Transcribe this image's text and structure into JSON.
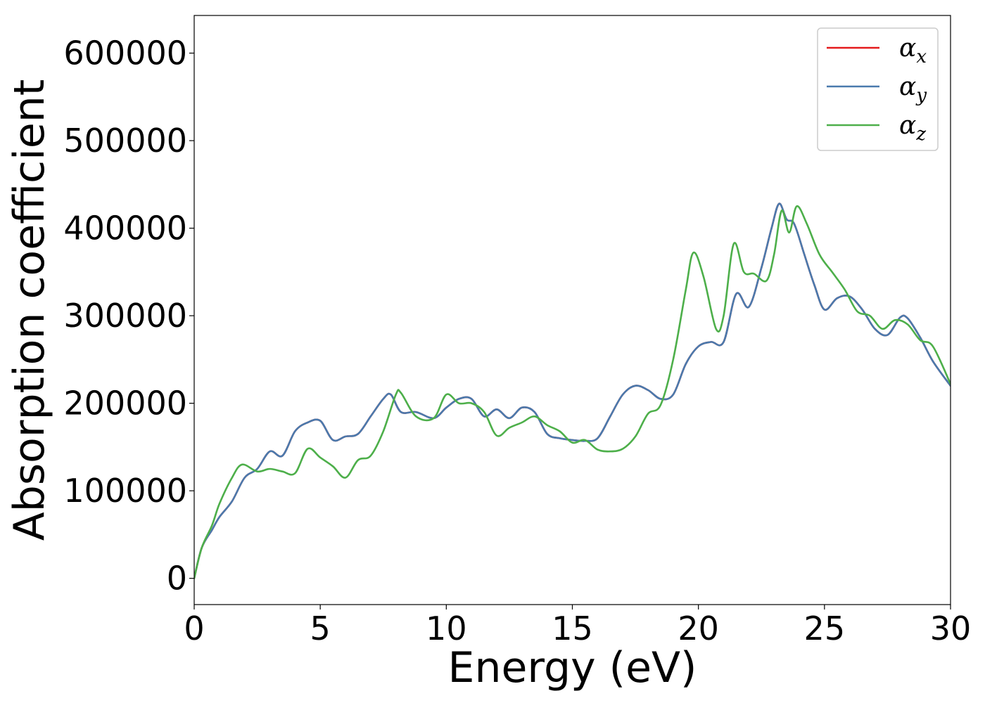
{
  "chart_data": {
    "type": "line",
    "title": "",
    "xlabel": "Energy (eV)",
    "ylabel": "Absorption coefficient",
    "xlim": [
      0,
      30
    ],
    "ylim": [
      -30000,
      643000
    ],
    "xticks": [
      0,
      5,
      10,
      15,
      20,
      25,
      30
    ],
    "xtick_labels": [
      "0",
      "5",
      "10",
      "15",
      "20",
      "25",
      "30"
    ],
    "yticks": [
      0,
      100000,
      200000,
      300000,
      400000,
      500000,
      600000
    ],
    "ytick_labels": [
      "0",
      "100000",
      "200000",
      "300000",
      "400000",
      "500000",
      "600000"
    ],
    "grid": false,
    "legend_position": "top-right",
    "colors": {
      "x": "#e41a1c",
      "y": "#4a7aad",
      "z": "#4daf4a"
    },
    "series": [
      {
        "key": "x",
        "name": "α",
        "sub": "x",
        "color": "#e41a1c",
        "x": [
          0,
          0.3,
          0.7,
          1.0,
          1.5,
          2.0,
          2.5,
          3.0,
          3.5,
          4.0,
          4.5,
          5.0,
          5.5,
          6.0,
          6.5,
          7.0,
          7.5,
          7.8,
          8.2,
          8.8,
          9.5,
          10.0,
          10.5,
          11.0,
          11.5,
          12.0,
          12.5,
          13.0,
          13.5,
          14.0,
          14.5,
          15.0,
          15.5,
          16.0,
          16.5,
          17.0,
          17.5,
          18.0,
          18.5,
          19.0,
          19.5,
          20.0,
          20.5,
          21.0,
          21.5,
          22.0,
          22.5,
          22.9,
          23.2,
          23.5,
          23.8,
          24.2,
          24.6,
          25.0,
          25.5,
          26.0,
          26.5,
          27.0,
          27.5,
          28.0,
          28.3,
          28.8,
          29.3,
          30.0
        ],
        "y": [
          0,
          35000,
          55000,
          70000,
          88000,
          115000,
          125000,
          145000,
          140000,
          168000,
          178000,
          180000,
          158000,
          162000,
          165000,
          185000,
          205000,
          210000,
          190000,
          190000,
          183000,
          195000,
          205000,
          205000,
          185000,
          193000,
          183000,
          195000,
          190000,
          165000,
          160000,
          158000,
          157000,
          160000,
          185000,
          210000,
          220000,
          215000,
          205000,
          210000,
          245000,
          265000,
          270000,
          270000,
          325000,
          310000,
          355000,
          400000,
          428000,
          410000,
          405000,
          370000,
          335000,
          307000,
          320000,
          322000,
          307000,
          285000,
          278000,
          298000,
          297000,
          275000,
          248000,
          220000
        ]
      },
      {
        "key": "y",
        "name": "α",
        "sub": "y",
        "color": "#4a7aad",
        "x": [
          0,
          0.3,
          0.7,
          1.0,
          1.5,
          2.0,
          2.5,
          3.0,
          3.5,
          4.0,
          4.5,
          5.0,
          5.5,
          6.0,
          6.5,
          7.0,
          7.5,
          7.8,
          8.2,
          8.8,
          9.5,
          10.0,
          10.5,
          11.0,
          11.5,
          12.0,
          12.5,
          13.0,
          13.5,
          14.0,
          14.5,
          15.0,
          15.5,
          16.0,
          16.5,
          17.0,
          17.5,
          18.0,
          18.5,
          19.0,
          19.5,
          20.0,
          20.5,
          21.0,
          21.5,
          22.0,
          22.5,
          22.9,
          23.2,
          23.5,
          23.8,
          24.2,
          24.6,
          25.0,
          25.5,
          26.0,
          26.5,
          27.0,
          27.5,
          28.0,
          28.3,
          28.8,
          29.3,
          30.0
        ],
        "y": [
          0,
          35000,
          55000,
          70000,
          88000,
          115000,
          125000,
          145000,
          140000,
          168000,
          178000,
          180000,
          158000,
          162000,
          165000,
          185000,
          205000,
          210000,
          190000,
          190000,
          183000,
          195000,
          205000,
          205000,
          185000,
          193000,
          183000,
          195000,
          190000,
          165000,
          160000,
          158000,
          157000,
          160000,
          185000,
          210000,
          220000,
          215000,
          205000,
          210000,
          245000,
          265000,
          270000,
          270000,
          325000,
          310000,
          355000,
          400000,
          428000,
          410000,
          405000,
          370000,
          335000,
          307000,
          320000,
          322000,
          307000,
          285000,
          278000,
          298000,
          297000,
          275000,
          248000,
          220000
        ]
      },
      {
        "key": "z",
        "name": "α",
        "sub": "z",
        "color": "#4daf4a",
        "x": [
          0,
          0.3,
          0.7,
          1.0,
          1.5,
          1.9,
          2.5,
          3.0,
          3.5,
          4.0,
          4.5,
          5.0,
          5.5,
          6.0,
          6.5,
          7.0,
          7.5,
          8.0,
          8.2,
          8.8,
          9.5,
          10.0,
          10.5,
          11.0,
          11.5,
          12.0,
          12.5,
          13.0,
          13.5,
          14.0,
          14.5,
          15.0,
          15.5,
          16.0,
          16.5,
          17.0,
          17.5,
          18.0,
          18.5,
          19.0,
          19.5,
          19.8,
          20.2,
          20.7,
          21.0,
          21.4,
          21.8,
          22.2,
          22.7,
          23.0,
          23.3,
          23.6,
          23.9,
          24.3,
          24.8,
          25.3,
          25.8,
          26.3,
          26.8,
          27.3,
          27.8,
          28.3,
          28.8,
          29.3,
          30.0
        ],
        "y": [
          0,
          35000,
          60000,
          85000,
          115000,
          130000,
          122000,
          125000,
          122000,
          120000,
          148000,
          138000,
          128000,
          115000,
          135000,
          140000,
          168000,
          210000,
          212000,
          185000,
          183000,
          210000,
          200000,
          200000,
          190000,
          163000,
          172000,
          178000,
          185000,
          175000,
          168000,
          155000,
          158000,
          147000,
          145000,
          148000,
          162000,
          188000,
          198000,
          250000,
          330000,
          372000,
          345000,
          285000,
          300000,
          382000,
          350000,
          348000,
          340000,
          370000,
          420000,
          395000,
          425000,
          405000,
          370000,
          350000,
          330000,
          305000,
          300000,
          285000,
          295000,
          290000,
          272000,
          265000,
          222000
        ]
      }
    ]
  }
}
